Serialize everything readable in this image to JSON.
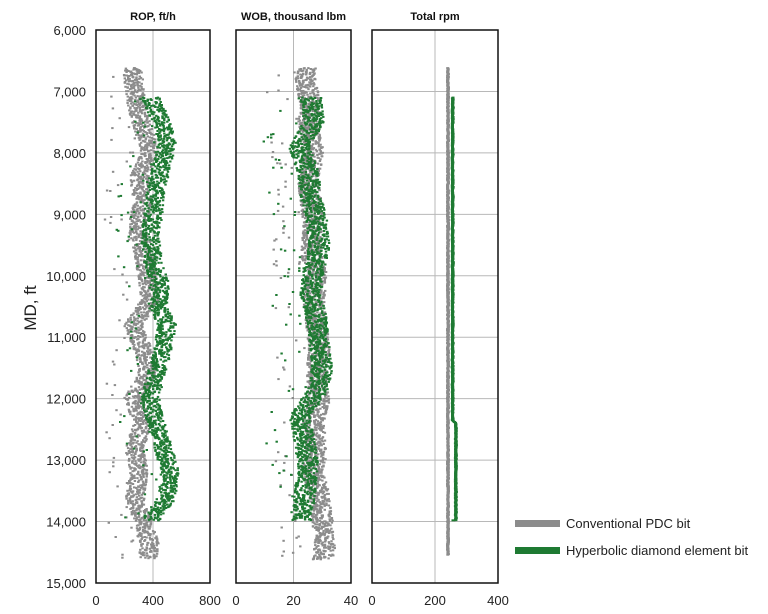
{
  "chart_data": {
    "type": "scatter",
    "y_axis": {
      "label": "MD, ft",
      "range": [
        6000,
        15000
      ],
      "ticks": [
        6000,
        7000,
        8000,
        9000,
        10000,
        11000,
        12000,
        13000,
        14000,
        15000
      ],
      "tick_labels": [
        "6,000",
        "7,000",
        "8,000",
        "9,000",
        "10,000",
        "11,000",
        "12,000",
        "13,000",
        "14,000",
        "15,000"
      ],
      "inverted": true
    },
    "panels": [
      {
        "title": "ROP, ft/h",
        "xlim": [
          0,
          800
        ],
        "xticks": [
          0,
          400,
          800
        ],
        "xtick_labels": [
          "0",
          "400",
          "800"
        ],
        "gridlines": [
          400
        ],
        "series": [
          {
            "name": "Conventional PDC bit",
            "depth_range": [
              6620,
              14600
            ],
            "profile": [
              [
                6620,
                250
              ],
              [
                6700,
                260
              ],
              [
                7200,
                280
              ],
              [
                7600,
                330
              ],
              [
                8000,
                380
              ],
              [
                8400,
                300
              ],
              [
                8800,
                330
              ],
              [
                9200,
                290
              ],
              [
                9600,
                330
              ],
              [
                10000,
                360
              ],
              [
                10400,
                380
              ],
              [
                10800,
                260
              ],
              [
                11200,
                330
              ],
              [
                11600,
                360
              ],
              [
                12000,
                260
              ],
              [
                12400,
                330
              ],
              [
                12800,
                270
              ],
              [
                13200,
                300
              ],
              [
                13600,
                270
              ],
              [
                14000,
                330
              ],
              [
                14400,
                380
              ],
              [
                14600,
                360
              ]
            ]
          },
          {
            "name": "Hyperbolic diamond element bit",
            "depth_range": [
              7100,
              13980
            ],
            "profile": [
              [
                7100,
                380
              ],
              [
                7500,
                460
              ],
              [
                7800,
                500
              ],
              [
                8200,
                460
              ],
              [
                8600,
                420
              ],
              [
                9000,
                400
              ],
              [
                9400,
                380
              ],
              [
                9800,
                400
              ],
              [
                10200,
                460
              ],
              [
                10500,
                430
              ],
              [
                10800,
                500
              ],
              [
                11200,
                470
              ],
              [
                11600,
                420
              ],
              [
                12000,
                380
              ],
              [
                12400,
                420
              ],
              [
                12800,
                470
              ],
              [
                13200,
                520
              ],
              [
                13600,
                500
              ],
              [
                13980,
                380
              ]
            ]
          }
        ]
      },
      {
        "title": "WOB, thousand lbm",
        "xlim": [
          0,
          40
        ],
        "xticks": [
          0,
          20,
          40
        ],
        "xtick_labels": [
          "0",
          "20",
          "40"
        ],
        "gridlines": [
          20
        ],
        "series": [
          {
            "name": "Conventional PDC bit",
            "depth_range": [
              6620,
              14620
            ],
            "profile": [
              [
                6620,
                25
              ],
              [
                6800,
                24
              ],
              [
                7200,
                26
              ],
              [
                7600,
                25
              ],
              [
                8000,
                27
              ],
              [
                8400,
                25
              ],
              [
                8800,
                26
              ],
              [
                9200,
                27
              ],
              [
                9600,
                26
              ],
              [
                10000,
                28
              ],
              [
                10400,
                27
              ],
              [
                10800,
                28
              ],
              [
                11200,
                29
              ],
              [
                11600,
                28
              ],
              [
                12000,
                29
              ],
              [
                12400,
                27
              ],
              [
                12800,
                28
              ],
              [
                13200,
                27
              ],
              [
                13600,
                29
              ],
              [
                14000,
                30
              ],
              [
                14400,
                31
              ],
              [
                14620,
                30
              ]
            ]
          },
          {
            "name": "Hyperbolic diamond element bit",
            "depth_range": [
              7100,
              13980
            ],
            "profile": [
              [
                7100,
                26
              ],
              [
                7500,
                27
              ],
              [
                7900,
                22
              ],
              [
                8300,
                25
              ],
              [
                8700,
                26
              ],
              [
                9100,
                28
              ],
              [
                9500,
                29
              ],
              [
                9900,
                27
              ],
              [
                10300,
                26
              ],
              [
                10700,
                28
              ],
              [
                11100,
                29
              ],
              [
                11500,
                30
              ],
              [
                11900,
                28
              ],
              [
                12300,
                22
              ],
              [
                12700,
                24
              ],
              [
                13100,
                25
              ],
              [
                13500,
                24
              ],
              [
                13980,
                23
              ]
            ]
          }
        ]
      },
      {
        "title": "Total rpm",
        "xlim": [
          0,
          400
        ],
        "xticks": [
          0,
          200,
          400
        ],
        "xtick_labels": [
          "0",
          "200",
          "400"
        ],
        "gridlines": [
          200
        ],
        "series": [
          {
            "name": "Conventional PDC bit",
            "depth_range": [
              6620,
              14550
            ],
            "profile": [
              [
                6620,
                240
              ],
              [
                14550,
                240
              ]
            ]
          },
          {
            "name": "Hyperbolic diamond element bit",
            "depth_range": [
              7100,
              13980
            ],
            "profile": [
              [
                7100,
                255
              ],
              [
                12350,
                255
              ],
              [
                12400,
                265
              ],
              [
                13980,
                265
              ]
            ]
          }
        ]
      }
    ],
    "legend": {
      "placement": "bottom-right",
      "entries": [
        {
          "label": "Conventional PDC bit",
          "color": "#8c8c8c"
        },
        {
          "label": "Hyperbolic diamond element bit",
          "color": "#1e7a32"
        }
      ]
    }
  }
}
